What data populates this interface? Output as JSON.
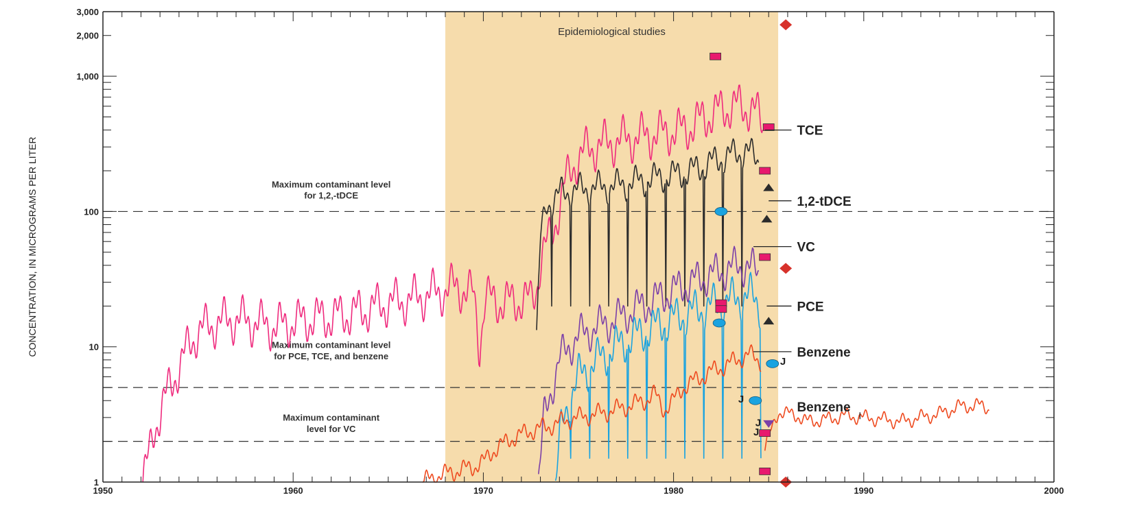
{
  "chart_data": {
    "type": "line",
    "ylabel": "CONCENTRATION, IN MICROGRAMS PER LITER",
    "xlabel": "",
    "xlim": [
      1950,
      2000
    ],
    "ylim": [
      1,
      3000
    ],
    "yscale": "log",
    "x_ticks": [
      "1950",
      "1960",
      "1970",
      "1980",
      "1990",
      "2000"
    ],
    "y_ticks": [
      {
        "value": 1,
        "label": "1"
      },
      {
        "value": 10,
        "label": "10"
      },
      {
        "value": 100,
        "label": "100"
      },
      {
        "value": 1000,
        "label": "1,000"
      },
      {
        "value": 2000,
        "label": "2,000"
      },
      {
        "value": 3000,
        "label": "3,000"
      }
    ],
    "shaded_period": {
      "label": "Epidemiological studies",
      "x": [
        1968,
        1985.5
      ],
      "color": "#f6dcac"
    },
    "mcl_lines": [
      {
        "name": "mcl-tdce",
        "value": 100,
        "label_lines": [
          "Maximum contaminant level",
          "for 1,2,-tDCE"
        ],
        "label_x": 1962,
        "label_y": [
          150,
          125
        ]
      },
      {
        "name": "mcl-pce",
        "value": 5,
        "label_lines": [
          "Maximum contaminant level",
          "for PCE, TCE, and benzene"
        ],
        "label_x": 1962,
        "label_y": [
          9.8,
          8.1
        ]
      },
      {
        "name": "mcl-vc",
        "value": 2,
        "label_lines": [
          "Maximum contaminant",
          "level for VC"
        ],
        "label_x": 1962,
        "label_y": [
          2.85,
          2.35
        ]
      }
    ],
    "series": [
      {
        "name": "TCE",
        "color": "#ef2a7d",
        "label_value": 400,
        "leader_x": [
          1984.8,
          1986.2
        ],
        "x": [
          1952.1,
          1952.4,
          1952.7,
          1953.0,
          1953.5,
          1954.0,
          1954.5,
          1955.0,
          1956.0,
          1957.0,
          1958.0,
          1959.0,
          1960.0,
          1961.0,
          1962.0,
          1963.0,
          1964.0,
          1965.0,
          1966.0,
          1967.0,
          1968.0,
          1968.6,
          1969.0,
          1969.5,
          1969.8,
          1970.1,
          1970.6,
          1971.0,
          1972.0,
          1972.5,
          1972.8,
          1973.0,
          1973.3,
          1973.6,
          1973.9,
          1974.3,
          1974.8,
          1975.5,
          1976.5,
          1977.5,
          1978.5,
          1979.5,
          1980.5,
          1981.0,
          1981.5,
          1982.0,
          1982.5,
          1983.0,
          1983.5,
          1983.9,
          1984.3,
          1984.7
        ],
        "y": [
          1.0,
          1.5,
          2.5,
          3.2,
          5.0,
          7.0,
          10.0,
          13.0,
          15.0,
          16.0,
          15.0,
          14.0,
          15.0,
          16.0,
          16.5,
          17.5,
          19.0,
          21.0,
          22.0,
          24.0,
          26.0,
          28.0,
          26.0,
          24.0,
          10.0,
          23.0,
          22.0,
          21.0,
          22.0,
          22.0,
          28.0,
          42.0,
          55.0,
          70.0,
          95.0,
          160.0,
          230.0,
          290.0,
          320.0,
          340.0,
          360.0,
          380.0,
          400.0,
          430.0,
          480.0,
          520.0,
          560.0,
          590.0,
          600.0,
          580.0,
          540.0,
          450.0
        ],
        "seasonal_amp": 0.55,
        "period": 1.0
      },
      {
        "name": "1,2-tDCE",
        "color": "#2b2b2b",
        "label_value": 120,
        "leader_x": [
          1985.0,
          1986.2
        ],
        "x": [
          1972.8,
          1973.0,
          1973.3,
          1974.0,
          1975.0,
          1976.0,
          1977.0,
          1978.0,
          1979.0,
          1980.0,
          1981.0,
          1982.0,
          1983.0,
          1983.8,
          1984.5
        ],
        "y": [
          12.0,
          60.0,
          110.0,
          135.0,
          145.0,
          150.0,
          155.0,
          165.0,
          175.0,
          185.0,
          200.0,
          230.0,
          260.0,
          280.0,
          240.0
        ],
        "seasonal_amp": 0.35,
        "period": 1.0,
        "dips": [
          1973.6,
          1974.6,
          1975.6,
          1976.6,
          1977.6,
          1978.6,
          1979.6,
          1980.6,
          1981.6,
          1982.6,
          1983.6,
          1984.6
        ],
        "dip_value": 20
      },
      {
        "name": "VC",
        "color": "#7b3fa8",
        "label_value": 55,
        "leader_x": [
          1984.2,
          1986.2
        ],
        "x": [
          1972.9,
          1973.2,
          1973.6,
          1974.0,
          1974.5,
          1975.0,
          1976.0,
          1977.0,
          1978.0,
          1979.0,
          1980.0,
          1981.0,
          1982.0,
          1983.0,
          1983.8,
          1984.5
        ],
        "y": [
          1.0,
          3.0,
          5.0,
          8.0,
          10.0,
          12.0,
          14.0,
          16.0,
          19.0,
          22.0,
          26.0,
          30.0,
          34.0,
          38.0,
          40.0,
          35.0
        ],
        "seasonal_amp": 0.45,
        "period": 1.0
      },
      {
        "name": "PCE",
        "color": "#1aa3e0",
        "label_value": 20,
        "leader_x": [
          1984.9,
          1986.2
        ],
        "x": [
          1973.8,
          1974.1,
          1974.5,
          1975.0,
          1976.0,
          1977.0,
          1978.0,
          1979.0,
          1980.0,
          1981.0,
          1982.0,
          1983.0,
          1984.0,
          1984.6
        ],
        "y": [
          1.0,
          2.5,
          4.0,
          6.0,
          8.0,
          10.0,
          12.0,
          14.0,
          16.0,
          18.0,
          20.0,
          22.0,
          24.0,
          20.0
        ],
        "seasonal_amp": 0.5,
        "period": 1.0,
        "dips": [
          1974.6,
          1975.6,
          1976.6,
          1977.6,
          1978.6,
          1979.6,
          1980.6,
          1981.6,
          1982.6,
          1983.6,
          1984.6
        ],
        "dip_value": 1.5
      },
      {
        "name": "Benzene",
        "color": "#ee4a1f",
        "label_value": 9.2,
        "leader_x": [
          1984.2,
          1986.2
        ],
        "x": [
          1966.8,
          1967.5,
          1968.5,
          1969.5,
          1970.0,
          1970.5,
          1971.5,
          1972.5,
          1973.5,
          1974.5,
          1975.5,
          1976.5,
          1977.5,
          1978.5,
          1979.0,
          1979.5,
          1980.0,
          1980.5,
          1981.0,
          1981.5,
          1982.0,
          1982.5,
          1983.0,
          1983.5,
          1984.0,
          1984.6
        ],
        "y": [
          1.0,
          1.1,
          1.2,
          1.3,
          1.4,
          1.7,
          2.1,
          2.4,
          2.6,
          2.9,
          3.1,
          3.3,
          3.6,
          4.0,
          4.5,
          3.4,
          4.0,
          5.0,
          5.5,
          6.0,
          6.6,
          7.0,
          7.6,
          8.2,
          8.8,
          7.8
        ],
        "seasonal_amp": 0.2,
        "period": 1.0
      },
      {
        "name": "Benzene",
        "color": "#ee4a1f",
        "label_value": 3.6,
        "leader_x": [
          1989.8,
          1989.8
        ],
        "x": [
          1984.8,
          1985.5,
          1986.5,
          1987.0,
          1988.0,
          1989.0,
          1990.0,
          1991.0,
          1992.0,
          1993.0,
          1994.0,
          1995.0,
          1996.0,
          1996.6
        ],
        "y": [
          1.8,
          3.3,
          3.1,
          2.8,
          2.9,
          3.1,
          3.0,
          2.9,
          2.8,
          3.0,
          3.2,
          3.6,
          3.7,
          3.5
        ],
        "seasonal_amp": 0.15,
        "period": 1.0
      }
    ],
    "point_markers": [
      {
        "shape": "square",
        "color": "#e8196e",
        "x": 1982.2,
        "y": 1400
      },
      {
        "shape": "square",
        "color": "#e8196e",
        "x": 1985.0,
        "y": 420
      },
      {
        "shape": "square",
        "color": "#e8196e",
        "x": 1984.8,
        "y": 200
      },
      {
        "shape": "square",
        "color": "#e8196e",
        "x": 1984.8,
        "y": 46
      },
      {
        "shape": "square",
        "color": "#e8196e",
        "x": 1982.5,
        "y": 21
      },
      {
        "shape": "square",
        "color": "#e8196e",
        "x": 1982.5,
        "y": 19
      },
      {
        "shape": "square",
        "color": "#e8196e",
        "x": 1984.8,
        "y": 2.3
      },
      {
        "shape": "square",
        "color": "#e8196e",
        "x": 1984.8,
        "y": 1.2
      },
      {
        "shape": "diamond",
        "color": "#d7322b",
        "x": 1985.9,
        "y": 2400
      },
      {
        "shape": "diamond",
        "color": "#d7322b",
        "x": 1985.9,
        "y": 38
      },
      {
        "shape": "diamond",
        "color": "#d7322b",
        "x": 1985.9,
        "y": 1.0
      },
      {
        "shape": "triangle-up",
        "color": "#2b2b2b",
        "x": 1985.0,
        "y": 150
      },
      {
        "shape": "triangle-up",
        "color": "#2b2b2b",
        "x": 1984.9,
        "y": 88
      },
      {
        "shape": "triangle-up",
        "color": "#2b2b2b",
        "x": 1985.0,
        "y": 15.5
      },
      {
        "shape": "triangle-down",
        "color": "#7b3fa8",
        "x": 1985.0,
        "y": 2.7
      },
      {
        "shape": "ellipse",
        "color": "#1aa3e0",
        "x": 1982.5,
        "y": 100
      },
      {
        "shape": "ellipse",
        "color": "#1aa3e0",
        "x": 1982.4,
        "y": 15
      },
      {
        "shape": "ellipse",
        "color": "#1aa3e0",
        "x": 1985.2,
        "y": 7.5
      },
      {
        "shape": "ellipse",
        "color": "#1aa3e0",
        "x": 1984.3,
        "y": 4.0
      }
    ],
    "j_labels": [
      {
        "text": "J",
        "x": 1985.6,
        "y": 7.8
      },
      {
        "text": "J",
        "x": 1983.4,
        "y": 4.1
      },
      {
        "text": "J",
        "x": 1984.3,
        "y": 2.75
      },
      {
        "text": "J",
        "x": 1984.2,
        "y": 2.35
      }
    ],
    "grid": false,
    "legend": "none"
  }
}
